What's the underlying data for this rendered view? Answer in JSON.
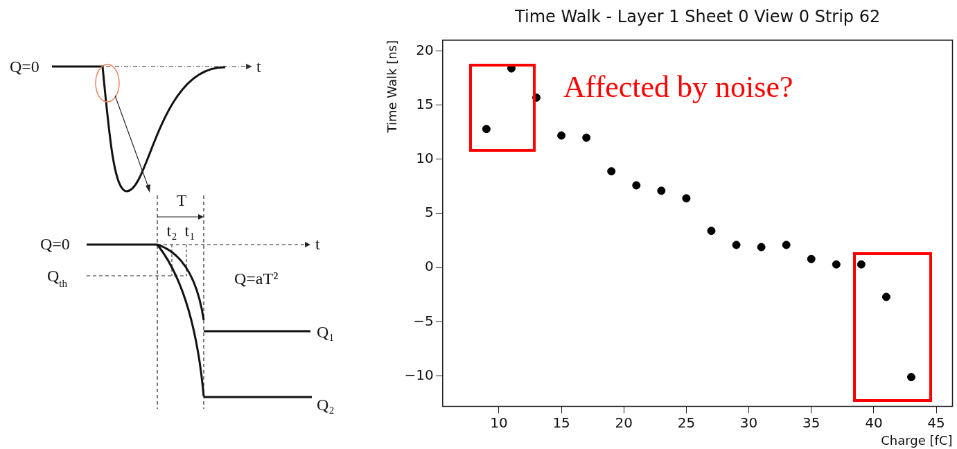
{
  "chart_data": [
    {
      "type": "other",
      "annotations": [
        "Q=0",
        "t",
        "T",
        "t₂",
        "t₁",
        "Q=0",
        "t",
        "Q$_{th}$",
        "Q=aT²",
        "Q₁",
        "Q₂"
      ]
    },
    {
      "type": "scatter",
      "title": "Time Walk - Layer 1 Sheet 0 View 0 Strip 62",
      "xlabel": "Charge [fC]",
      "ylabel": "Time Walk [ns]",
      "x": [
        9,
        11,
        13,
        15,
        17,
        19,
        21,
        23,
        25,
        27,
        29,
        31,
        33,
        35,
        37,
        39,
        41,
        43
      ],
      "series": [
        {
          "color": "#000000",
          "values": [
            12.8,
            18.4,
            15.7,
            12.2,
            12.0,
            8.9,
            7.6,
            7.1,
            6.4,
            3.4,
            2.1,
            1.9,
            2.1,
            0.8,
            0.3,
            0.3,
            -2.7,
            -10.1
          ]
        }
      ],
      "xlim": [
        5.5,
        46.3
      ],
      "xticks": [
        10,
        15,
        20,
        25,
        30,
        35,
        40,
        45
      ],
      "ylim": [
        -12.8,
        21
      ],
      "yticks": [
        -10,
        -5,
        0,
        5,
        10,
        15,
        20
      ],
      "marker": "circle",
      "grid": false,
      "legend": false,
      "annotations": [
        "Affected by noise?"
      ]
    }
  ]
}
